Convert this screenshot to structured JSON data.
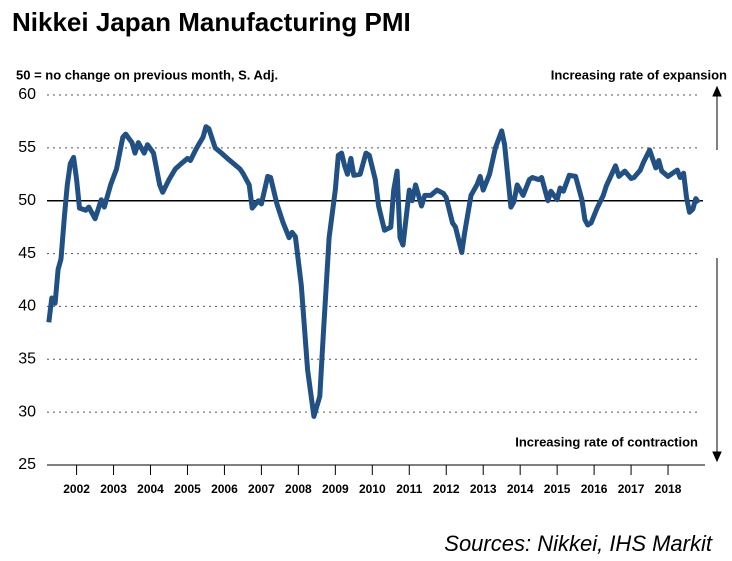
{
  "chart_data": {
    "type": "line",
    "title": "Nikkei Japan Manufacturing PMI",
    "note": "50 = no change on previous month, S. Adj.",
    "annotations": [
      "Increasing rate of expansion",
      "Increasing rate of contraction"
    ],
    "source": "Sources: Nikkei, IHS Markit",
    "color": "#215184",
    "reference_line": 50,
    "grid": true,
    "x": [
      2001.75,
      2001.83,
      2001.92,
      2002.0,
      2002.08,
      2002.17,
      2002.25,
      2002.33,
      2002.42,
      2002.5,
      2002.58,
      2002.75,
      2002.83,
      2003.0,
      2003.17,
      2003.25,
      2003.42,
      2003.58,
      2003.75,
      2003.83,
      2004.0,
      2004.08,
      2004.17,
      2004.33,
      2004.42,
      2004.58,
      2004.75,
      2004.83,
      2005.0,
      2005.17,
      2005.33,
      2005.5,
      2005.58,
      2005.75,
      2005.92,
      2006.0,
      2006.08,
      2006.25,
      2006.42,
      2006.58,
      2006.75,
      2006.92,
      2007.0,
      2007.17,
      2007.25,
      2007.42,
      2007.5,
      2007.67,
      2007.75,
      2007.92,
      2008.08,
      2008.25,
      2008.33,
      2008.42,
      2008.58,
      2008.75,
      2008.92,
      2009.08,
      2009.17,
      2009.33,
      2009.5,
      2009.58,
      2009.67,
      2009.75,
      2009.83,
      2009.92,
      2010.0,
      2010.17,
      2010.33,
      2010.42,
      2010.58,
      2010.67,
      2010.83,
      2011.0,
      2011.08,
      2011.17,
      2011.25,
      2011.33,
      2011.5,
      2011.58,
      2011.67,
      2011.83,
      2011.92,
      2012.08,
      2012.25,
      2012.42,
      2012.5,
      2012.67,
      2012.75,
      2012.92,
      2013.0,
      2013.17,
      2013.33,
      2013.42,
      2013.5,
      2013.67,
      2013.83,
      2014.0,
      2014.08,
      2014.25,
      2014.33,
      2014.42,
      2014.58,
      2014.75,
      2014.83,
      2015.0,
      2015.08,
      2015.25,
      2015.33,
      2015.5,
      2015.58,
      2015.67,
      2015.83,
      2016.0,
      2016.17,
      2016.25,
      2016.33,
      2016.42,
      2016.58,
      2016.75,
      2016.83,
      2017.0,
      2017.08,
      2017.17,
      2017.33,
      2017.5,
      2017.58,
      2017.75,
      2017.83,
      2018.0,
      2018.08,
      2018.17,
      2018.25,
      2018.33,
      2018.5,
      2018.58,
      2018.75,
      2018.83,
      2018.92,
      2019.0,
      2019.08,
      2019.17,
      2019.25,
      2019.33
    ],
    "values": [
      38.5,
      40.8,
      40.3,
      43.5,
      44.5,
      48.5,
      51.5,
      53.5,
      54.1,
      52,
      49.3,
      49.1,
      49.4,
      48.3,
      50.1,
      49.4,
      51.5,
      53,
      56,
      56.3,
      55.5,
      54.5,
      55.5,
      54.5,
      55.3,
      54.5,
      51.5,
      50.8,
      52,
      53,
      53.5,
      54,
      53.8,
      55,
      56,
      57,
      56.8,
      55,
      54.5,
      54,
      53.5,
      53,
      52.6,
      51.5,
      49.3,
      50,
      49.7,
      52.3,
      52.2,
      49.7,
      48,
      46.5,
      47,
      46.6,
      42,
      34,
      29.6,
      31.5,
      37,
      46.5,
      51,
      54.3,
      54.5,
      53.3,
      52.5,
      54,
      52.4,
      52.5,
      54.5,
      54.3,
      52,
      49.5,
      47.2,
      47.5,
      51,
      52.8,
      46.5,
      45.8,
      51,
      50,
      51.5,
      49.5,
      50.5,
      50.5,
      51,
      50.7,
      50.3,
      47.9,
      47.5,
      45.1,
      47,
      50.5,
      51.5,
      52.3,
      51,
      52.5,
      55,
      56.6,
      55.3,
      49.4,
      49.9,
      51.5,
      50.5,
      52,
      52.2,
      52,
      52.2,
      50,
      50.9,
      50.1,
      51.2,
      50.9,
      52.4,
      52.3,
      50.1,
      48.2,
      47.7,
      47.9,
      49.3,
      50.5,
      51.4,
      52.7,
      53.3,
      52.3,
      52.8,
      52.1,
      52.2,
      52.9,
      53.6,
      54.8,
      54,
      53.1,
      53.8,
      52.8,
      52.3,
      52.5,
      52.9,
      52.2,
      52.6,
      50.3,
      48.9,
      49.2,
      50.2,
      49.8
    ],
    "xlim": [
      2001.7,
      2019.5
    ],
    "xticks": [
      {
        "value": 2002.5,
        "label": "2002"
      },
      {
        "value": 2003.5,
        "label": "2003"
      },
      {
        "value": 2004.5,
        "label": "2004"
      },
      {
        "value": 2005.5,
        "label": "2005"
      },
      {
        "value": 2006.5,
        "label": "2006"
      },
      {
        "value": 2007.5,
        "label": "2007"
      },
      {
        "value": 2008.5,
        "label": "2008"
      },
      {
        "value": 2009.5,
        "label": "2009"
      },
      {
        "value": 2010.5,
        "label": "2010"
      },
      {
        "value": 2011.5,
        "label": "2011"
      },
      {
        "value": 2012.5,
        "label": "2012"
      },
      {
        "value": 2013.5,
        "label": "2013"
      },
      {
        "value": 2014.5,
        "label": "2014"
      },
      {
        "value": 2015.5,
        "label": "2015"
      },
      {
        "value": 2016.5,
        "label": "2016"
      },
      {
        "value": 2017.5,
        "label": "2017"
      },
      {
        "value": 2018.5,
        "label": "2018"
      }
    ],
    "ylim": [
      25,
      60
    ],
    "yticks": [
      25,
      30,
      35,
      40,
      45,
      50,
      55,
      60
    ]
  }
}
